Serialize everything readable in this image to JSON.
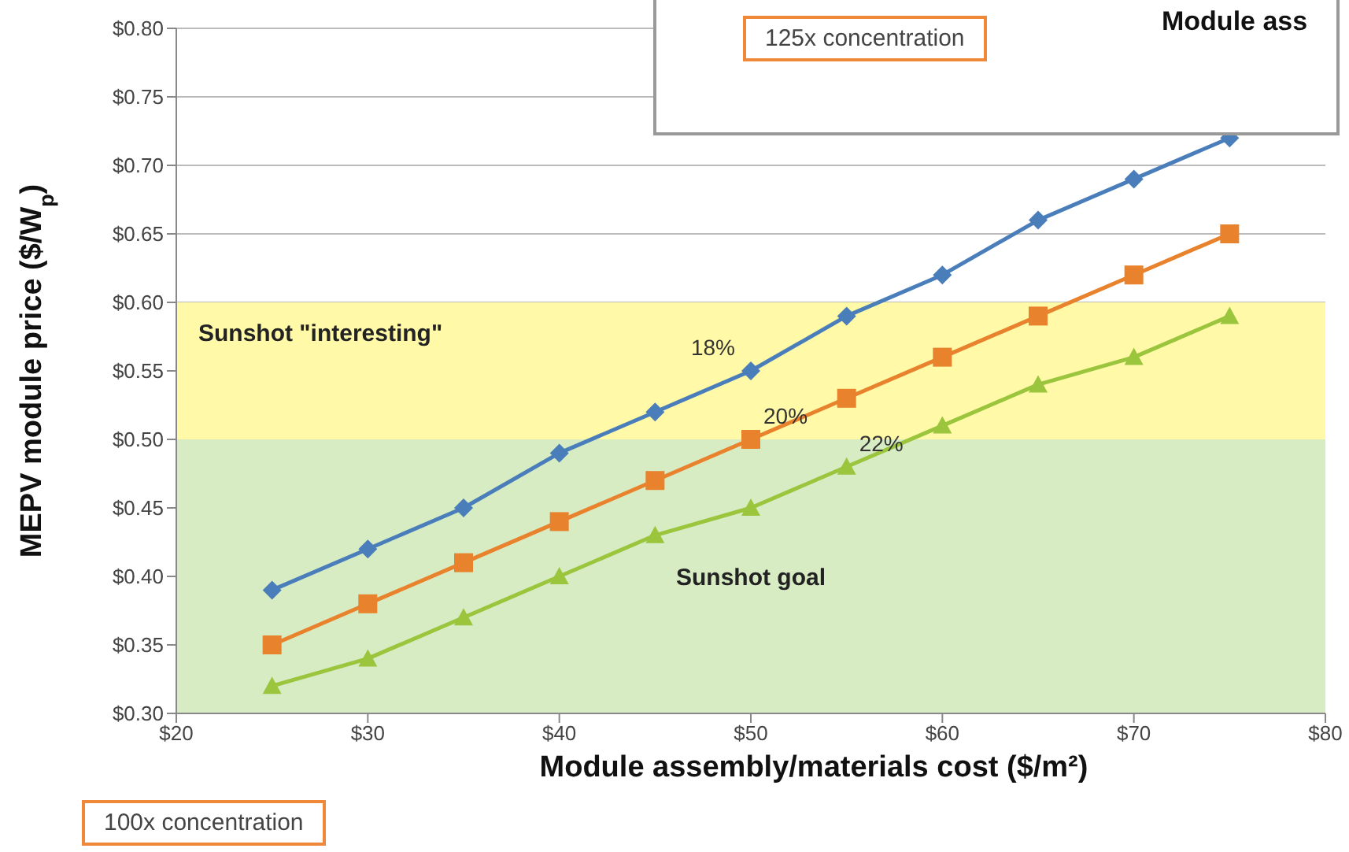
{
  "chart_data": {
    "type": "line",
    "xlabel": "Module assembly/materials cost ($/m²)",
    "ylabel": "MEPV module price ($/W$_{p}$)",
    "x": [
      25,
      30,
      35,
      40,
      45,
      50,
      55,
      60,
      65,
      70,
      75
    ],
    "series": [
      {
        "name": "18%",
        "color": "#4a7ebb",
        "values": [
          0.39,
          0.42,
          0.45,
          0.49,
          0.52,
          0.55,
          0.59,
          0.62,
          0.66,
          0.69,
          0.72
        ],
        "marker": "diamond"
      },
      {
        "name": "20%",
        "color": "#e8822c",
        "values": [
          0.35,
          0.38,
          0.41,
          0.44,
          0.47,
          0.5,
          0.53,
          0.56,
          0.59,
          0.62,
          0.65
        ],
        "marker": "square"
      },
      {
        "name": "22%",
        "color": "#9bc53d",
        "values": [
          0.32,
          0.34,
          0.37,
          0.4,
          0.43,
          0.45,
          0.48,
          0.51,
          0.54,
          0.56,
          0.59
        ],
        "marker": "triangle"
      }
    ],
    "xlim": [
      20,
      80
    ],
    "xticks": [
      {
        "value": 20,
        "label": "$20"
      },
      {
        "value": 30,
        "label": "$30"
      },
      {
        "value": 40,
        "label": "$40"
      },
      {
        "value": 50,
        "label": "$50"
      },
      {
        "value": 60,
        "label": "$60"
      },
      {
        "value": 70,
        "label": "$70"
      },
      {
        "value": 80,
        "label": "$80"
      }
    ],
    "ylim": [
      0.3,
      0.8
    ],
    "yticks": [
      {
        "value": 0.3,
        "label": "$0.30"
      },
      {
        "value": 0.35,
        "label": "$0.35"
      },
      {
        "value": 0.4,
        "label": "$0.40"
      },
      {
        "value": 0.45,
        "label": "$0.45"
      },
      {
        "value": 0.5,
        "label": "$0.50"
      },
      {
        "value": 0.55,
        "label": "$0.55"
      },
      {
        "value": 0.6,
        "label": "$0.60"
      },
      {
        "value": 0.65,
        "label": "$0.65"
      },
      {
        "value": 0.7,
        "label": "$0.70"
      },
      {
        "value": 0.75,
        "label": "$0.75"
      },
      {
        "value": 0.8,
        "label": "$0.80"
      }
    ],
    "bands": [
      {
        "axis": "y",
        "from": 0.5,
        "to": 0.6,
        "label": "Sunshot \"interesting\"",
        "color": "#fff9a8"
      },
      {
        "axis": "y",
        "from": 0.3,
        "to": 0.5,
        "label": "Sunshot goal",
        "color": "#d8ecc4"
      }
    ],
    "annotations": [
      "125x concentration",
      "Module ass",
      "100x concentration"
    ],
    "grid": "y"
  }
}
